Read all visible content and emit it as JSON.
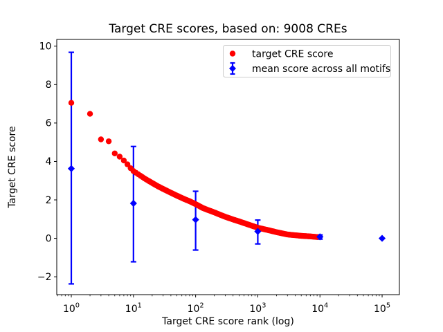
{
  "chart_data": {
    "type": "scatter",
    "title": "Target CRE scores, based on: 9008 CREs",
    "xlabel": "Target CRE score rank (log)",
    "ylabel": "Target CRE score",
    "x_scale": "log",
    "x_tick_values": [
      1,
      10,
      100,
      1000,
      10000,
      100000
    ],
    "y_ticks": [
      -2,
      0,
      2,
      4,
      6,
      8,
      10
    ],
    "x_range_log10": [
      -0.234,
      5.278
    ],
    "y_range": [
      -2.93,
      10.35
    ],
    "grid": false,
    "background": "#ffffff",
    "series": [
      {
        "name": "target CRE score",
        "render": "dense-scatter",
        "marker": "circle",
        "color": "#ff0000",
        "n_points": 9008,
        "sampled_points": {
          "rank": [
            1,
            2,
            3,
            4,
            5,
            6,
            7,
            8,
            9,
            10,
            12,
            15,
            20,
            25,
            30,
            40,
            50,
            65,
            80,
            100,
            130,
            150,
            200,
            250,
            300,
            400,
            500,
            700,
            1000,
            1500,
            2000,
            3000,
            5000,
            7000,
            9008
          ],
          "score": [
            7.05,
            6.48,
            5.15,
            5.05,
            4.42,
            4.25,
            4.05,
            3.85,
            3.65,
            3.5,
            3.33,
            3.12,
            2.88,
            2.7,
            2.57,
            2.37,
            2.22,
            2.05,
            1.93,
            1.78,
            1.58,
            1.5,
            1.35,
            1.22,
            1.12,
            0.98,
            0.88,
            0.72,
            0.55,
            0.42,
            0.32,
            0.2,
            0.13,
            0.1,
            0.07
          ]
        }
      },
      {
        "name": "mean score across all motifs",
        "render": "errorbar",
        "marker": "diamond",
        "color": "#0000ff",
        "points": [
          {
            "rank": 1,
            "mean": 3.63,
            "err_low": -2.37,
            "err_high": 9.68
          },
          {
            "rank": 10,
            "mean": 1.82,
            "err_low": -1.22,
            "err_high": 4.78
          },
          {
            "rank": 100,
            "mean": 0.97,
            "err_low": -0.61,
            "err_high": 2.45
          },
          {
            "rank": 1000,
            "mean": 0.36,
            "err_low": -0.29,
            "err_high": 0.95
          },
          {
            "rank": 10000,
            "mean": 0.08,
            "err_low": -0.04,
            "err_high": 0.18
          },
          {
            "rank": 100000,
            "mean": 0.0,
            "err_low": 0.0,
            "err_high": 0.0
          }
        ]
      }
    ],
    "legend": {
      "position": "upper right",
      "entries": [
        {
          "label": "target CRE score",
          "marker": "circle",
          "color": "#ff0000"
        },
        {
          "label": "mean score across all motifs",
          "marker": "diamond-errorbar",
          "color": "#0000ff"
        }
      ]
    }
  },
  "colors": {
    "red_series": "#ff0000",
    "blue_series": "#0000ff",
    "axis": "#000000",
    "legend_border": "#cccccc",
    "background": "#ffffff"
  }
}
